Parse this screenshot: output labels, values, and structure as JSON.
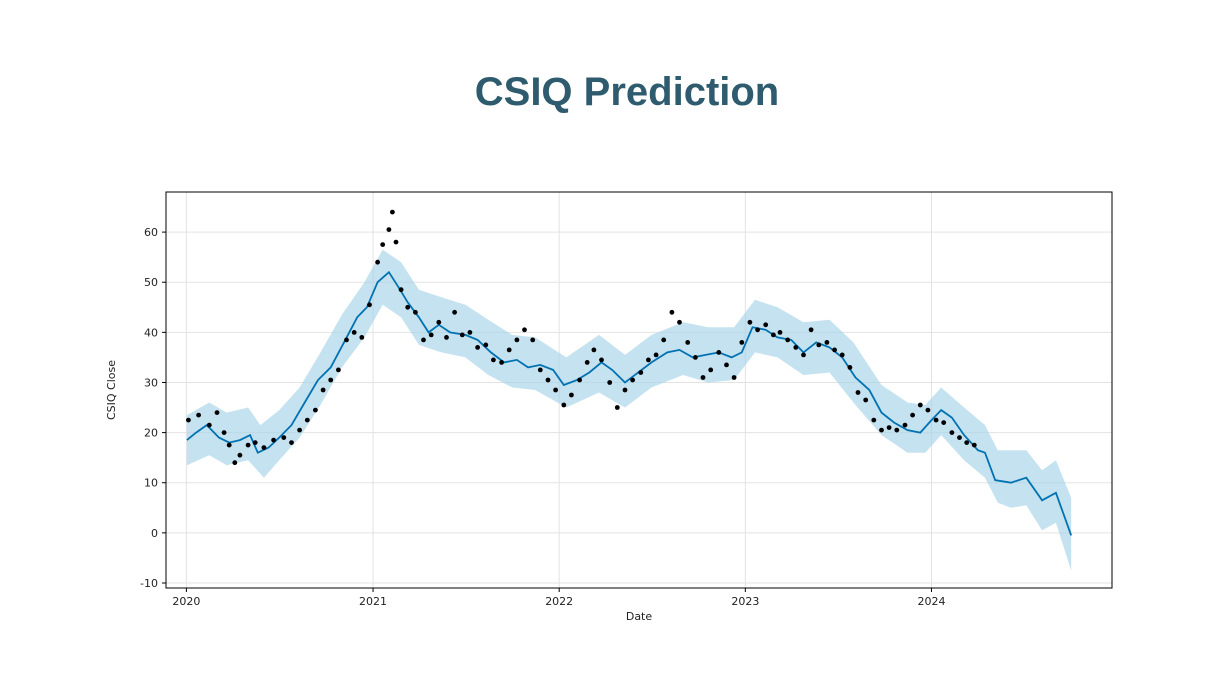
{
  "page": {
    "title": "CSIQ Prediction"
  },
  "colors": {
    "title": "#2e5b6e",
    "forecast": "#0072b2",
    "band": "#a6d2e8",
    "actual": "#000000"
  },
  "chart_data": {
    "type": "line",
    "title": "",
    "xlabel": "Date",
    "ylabel": "CSIQ Close",
    "x_ticks": [
      "2020",
      "2021",
      "2022",
      "2023",
      "2024"
    ],
    "y_ticks": [
      -10,
      0,
      10,
      20,
      30,
      40,
      50,
      60
    ],
    "xlim": [
      "2019-11-22",
      "2024-12-20"
    ],
    "ylim": [
      -11,
      68
    ],
    "grid": true,
    "series": [
      {
        "kind": "forecast",
        "points": [
          [
            "2020-01-02",
            18.5
          ],
          [
            "2020-01-20",
            20.0
          ],
          [
            "2020-02-10",
            21.5
          ],
          [
            "2020-03-05",
            19.0
          ],
          [
            "2020-03-25",
            18.0
          ],
          [
            "2020-04-15",
            18.5
          ],
          [
            "2020-05-05",
            19.5
          ],
          [
            "2020-05-20",
            16.0
          ],
          [
            "2020-06-10",
            17.0
          ],
          [
            "2020-07-01",
            19.0
          ],
          [
            "2020-07-25",
            21.5
          ],
          [
            "2020-08-20",
            26.0
          ],
          [
            "2020-09-15",
            30.5
          ],
          [
            "2020-10-10",
            33.0
          ],
          [
            "2020-11-05",
            38.0
          ],
          [
            "2020-12-01",
            43.0
          ],
          [
            "2020-12-20",
            45.0
          ],
          [
            "2021-01-10",
            50.0
          ],
          [
            "2021-02-01",
            52.0
          ],
          [
            "2021-02-20",
            49.0
          ],
          [
            "2021-03-10",
            46.0
          ],
          [
            "2021-04-01",
            43.0
          ],
          [
            "2021-04-20",
            40.0
          ],
          [
            "2021-05-10",
            41.5
          ],
          [
            "2021-06-01",
            40.0
          ],
          [
            "2021-07-01",
            39.5
          ],
          [
            "2021-07-25",
            38.5
          ],
          [
            "2021-08-20",
            36.0
          ],
          [
            "2021-09-15",
            34.0
          ],
          [
            "2021-10-10",
            34.5
          ],
          [
            "2021-11-01",
            33.0
          ],
          [
            "2021-11-25",
            33.5
          ],
          [
            "2021-12-20",
            32.5
          ],
          [
            "2022-01-10",
            29.5
          ],
          [
            "2022-02-05",
            30.5
          ],
          [
            "2022-03-01",
            32.0
          ],
          [
            "2022-03-25",
            34.0
          ],
          [
            "2022-04-15",
            32.5
          ],
          [
            "2022-05-10",
            30.0
          ],
          [
            "2022-06-05",
            32.0
          ],
          [
            "2022-07-01",
            34.0
          ],
          [
            "2022-08-01",
            36.0
          ],
          [
            "2022-08-25",
            36.5
          ],
          [
            "2022-09-20",
            35.0
          ],
          [
            "2022-10-15",
            35.5
          ],
          [
            "2022-11-10",
            36.0
          ],
          [
            "2022-12-05",
            35.0
          ],
          [
            "2022-12-25",
            36.0
          ],
          [
            "2023-01-15",
            41.0
          ],
          [
            "2023-02-10",
            40.5
          ],
          [
            "2023-03-05",
            39.0
          ],
          [
            "2023-04-01",
            38.5
          ],
          [
            "2023-04-25",
            36.0
          ],
          [
            "2023-05-20",
            38.0
          ],
          [
            "2023-06-15",
            37.0
          ],
          [
            "2023-07-10",
            35.0
          ],
          [
            "2023-08-05",
            31.0
          ],
          [
            "2023-09-01",
            28.5
          ],
          [
            "2023-09-25",
            24.0
          ],
          [
            "2023-10-20",
            22.0
          ],
          [
            "2023-11-15",
            20.5
          ],
          [
            "2023-12-10",
            20.0
          ],
          [
            "2024-01-01",
            22.5
          ],
          [
            "2024-01-20",
            24.5
          ],
          [
            "2024-02-10",
            23.0
          ],
          [
            "2024-03-05",
            19.5
          ],
          [
            "2024-04-01",
            16.5
          ],
          [
            "2024-04-15",
            16.0
          ],
          [
            "2024-05-05",
            10.5
          ],
          [
            "2024-06-05",
            10.0
          ],
          [
            "2024-07-05",
            11.0
          ],
          [
            "2024-08-05",
            6.5
          ],
          [
            "2024-09-01",
            8.0
          ],
          [
            "2024-10-01",
            -0.5
          ]
        ],
        "band_upper": [
          [
            "2020-01-02",
            23.5
          ],
          [
            "2020-02-15",
            26.0
          ],
          [
            "2020-03-20",
            24.0
          ],
          [
            "2020-05-01",
            25.0
          ],
          [
            "2020-05-25",
            21.5
          ],
          [
            "2020-07-01",
            24.5
          ],
          [
            "2020-08-10",
            29.0
          ],
          [
            "2020-09-20",
            36.0
          ],
          [
            "2020-11-01",
            43.5
          ],
          [
            "2020-12-15",
            50.0
          ],
          [
            "2021-01-20",
            56.5
          ],
          [
            "2021-02-25",
            54.0
          ],
          [
            "2021-04-01",
            48.5
          ],
          [
            "2021-05-15",
            47.0
          ],
          [
            "2021-07-01",
            45.5
          ],
          [
            "2021-08-15",
            42.5
          ],
          [
            "2021-10-01",
            39.5
          ],
          [
            "2021-11-15",
            39.0
          ],
          [
            "2022-01-15",
            35.0
          ],
          [
            "2022-03-20",
            39.5
          ],
          [
            "2022-05-10",
            35.5
          ],
          [
            "2022-07-01",
            39.5
          ],
          [
            "2022-09-01",
            42.0
          ],
          [
            "2022-10-20",
            41.0
          ],
          [
            "2022-12-10",
            41.0
          ],
          [
            "2023-01-20",
            46.5
          ],
          [
            "2023-03-05",
            45.0
          ],
          [
            "2023-04-25",
            42.0
          ],
          [
            "2023-06-15",
            42.5
          ],
          [
            "2023-08-01",
            38.0
          ],
          [
            "2023-09-25",
            29.5
          ],
          [
            "2023-11-15",
            26.0
          ],
          [
            "2023-12-20",
            25.5
          ],
          [
            "2024-01-20",
            29.0
          ],
          [
            "2024-03-05",
            25.0
          ],
          [
            "2024-04-15",
            21.5
          ],
          [
            "2024-05-10",
            16.5
          ],
          [
            "2024-07-05",
            16.5
          ],
          [
            "2024-08-05",
            12.5
          ],
          [
            "2024-09-01",
            14.5
          ],
          [
            "2024-10-01",
            7.0
          ]
        ],
        "band_lower": [
          [
            "2024-10-01",
            -7.5
          ],
          [
            "2024-09-01",
            2.0
          ],
          [
            "2024-08-05",
            0.5
          ],
          [
            "2024-07-05",
            5.5
          ],
          [
            "2024-06-05",
            5.0
          ],
          [
            "2024-05-10",
            6.0
          ],
          [
            "2024-04-15",
            11.0
          ],
          [
            "2024-03-05",
            14.5
          ],
          [
            "2024-01-20",
            19.5
          ],
          [
            "2023-12-20",
            16.0
          ],
          [
            "2023-11-15",
            16.0
          ],
          [
            "2023-09-25",
            19.5
          ],
          [
            "2023-08-01",
            26.0
          ],
          [
            "2023-06-15",
            32.0
          ],
          [
            "2023-04-25",
            31.5
          ],
          [
            "2023-03-05",
            35.0
          ],
          [
            "2023-01-20",
            36.0
          ],
          [
            "2022-12-10",
            30.5
          ],
          [
            "2022-10-20",
            30.0
          ],
          [
            "2022-09-01",
            31.5
          ],
          [
            "2022-07-01",
            29.0
          ],
          [
            "2022-05-10",
            25.0
          ],
          [
            "2022-03-20",
            28.0
          ],
          [
            "2022-01-15",
            25.0
          ],
          [
            "2021-11-15",
            28.5
          ],
          [
            "2021-10-01",
            29.0
          ],
          [
            "2021-08-15",
            31.5
          ],
          [
            "2021-07-01",
            35.0
          ],
          [
            "2021-05-15",
            36.0
          ],
          [
            "2021-04-01",
            37.5
          ],
          [
            "2021-02-25",
            43.0
          ],
          [
            "2021-01-20",
            45.5
          ],
          [
            "2020-12-15",
            39.0
          ],
          [
            "2020-11-01",
            33.0
          ],
          [
            "2020-09-20",
            25.5
          ],
          [
            "2020-08-10",
            19.0
          ],
          [
            "2020-07-01",
            14.5
          ],
          [
            "2020-06-01",
            11.0
          ],
          [
            "2020-05-01",
            14.5
          ],
          [
            "2020-03-20",
            13.5
          ],
          [
            "2020-02-15",
            15.5
          ],
          [
            "2020-01-02",
            13.5
          ]
        ]
      },
      {
        "kind": "actual",
        "points": [
          [
            "2020-01-05",
            22.5
          ],
          [
            "2020-01-25",
            23.5
          ],
          [
            "2020-02-15",
            21.5
          ],
          [
            "2020-03-01",
            24.0
          ],
          [
            "2020-03-15",
            20.0
          ],
          [
            "2020-03-25",
            17.5
          ],
          [
            "2020-04-05",
            14.0
          ],
          [
            "2020-04-15",
            15.5
          ],
          [
            "2020-05-01",
            17.5
          ],
          [
            "2020-05-15",
            18.0
          ],
          [
            "2020-06-01",
            17.0
          ],
          [
            "2020-06-20",
            18.5
          ],
          [
            "2020-07-10",
            19.0
          ],
          [
            "2020-07-25",
            18.0
          ],
          [
            "2020-08-10",
            20.5
          ],
          [
            "2020-08-25",
            22.5
          ],
          [
            "2020-09-10",
            24.5
          ],
          [
            "2020-09-25",
            28.5
          ],
          [
            "2020-10-10",
            30.5
          ],
          [
            "2020-10-25",
            32.5
          ],
          [
            "2020-11-10",
            38.5
          ],
          [
            "2020-11-25",
            40.0
          ],
          [
            "2020-12-10",
            39.0
          ],
          [
            "2020-12-25",
            45.5
          ],
          [
            "2021-01-10",
            54.0
          ],
          [
            "2021-01-20",
            57.5
          ],
          [
            "2021-02-01",
            60.5
          ],
          [
            "2021-02-08",
            64.0
          ],
          [
            "2021-02-15",
            58.0
          ],
          [
            "2021-02-25",
            48.5
          ],
          [
            "2021-03-10",
            45.0
          ],
          [
            "2021-03-25",
            44.0
          ],
          [
            "2021-04-10",
            38.5
          ],
          [
            "2021-04-25",
            39.5
          ],
          [
            "2021-05-10",
            42.0
          ],
          [
            "2021-05-25",
            39.0
          ],
          [
            "2021-06-10",
            44.0
          ],
          [
            "2021-06-25",
            39.5
          ],
          [
            "2021-07-10",
            40.0
          ],
          [
            "2021-07-25",
            37.0
          ],
          [
            "2021-08-10",
            37.5
          ],
          [
            "2021-08-25",
            34.5
          ],
          [
            "2021-09-10",
            34.0
          ],
          [
            "2021-09-25",
            36.5
          ],
          [
            "2021-10-10",
            38.5
          ],
          [
            "2021-10-25",
            40.5
          ],
          [
            "2021-11-10",
            38.5
          ],
          [
            "2021-11-25",
            32.5
          ],
          [
            "2021-12-10",
            30.5
          ],
          [
            "2021-12-25",
            28.5
          ],
          [
            "2022-01-10",
            25.5
          ],
          [
            "2022-01-25",
            27.5
          ],
          [
            "2022-02-10",
            30.5
          ],
          [
            "2022-02-25",
            34.0
          ],
          [
            "2022-03-10",
            36.5
          ],
          [
            "2022-03-25",
            34.5
          ],
          [
            "2022-04-10",
            30.0
          ],
          [
            "2022-04-25",
            25.0
          ],
          [
            "2022-05-10",
            28.5
          ],
          [
            "2022-05-25",
            30.5
          ],
          [
            "2022-06-10",
            32.0
          ],
          [
            "2022-06-25",
            34.5
          ],
          [
            "2022-07-10",
            35.5
          ],
          [
            "2022-07-25",
            38.5
          ],
          [
            "2022-08-10",
            44.0
          ],
          [
            "2022-08-25",
            42.0
          ],
          [
            "2022-09-10",
            38.0
          ],
          [
            "2022-09-25",
            35.0
          ],
          [
            "2022-10-10",
            31.0
          ],
          [
            "2022-10-25",
            32.5
          ],
          [
            "2022-11-10",
            36.0
          ],
          [
            "2022-11-25",
            33.5
          ],
          [
            "2022-12-10",
            31.0
          ],
          [
            "2022-12-25",
            38.0
          ],
          [
            "2023-01-10",
            42.0
          ],
          [
            "2023-01-25",
            40.5
          ],
          [
            "2023-02-10",
            41.5
          ],
          [
            "2023-02-25",
            39.5
          ],
          [
            "2023-03-10",
            40.0
          ],
          [
            "2023-03-25",
            38.5
          ],
          [
            "2023-04-10",
            37.0
          ],
          [
            "2023-04-25",
            35.5
          ],
          [
            "2023-05-10",
            40.5
          ],
          [
            "2023-05-25",
            37.5
          ],
          [
            "2023-06-10",
            38.0
          ],
          [
            "2023-06-25",
            36.5
          ],
          [
            "2023-07-10",
            35.5
          ],
          [
            "2023-07-25",
            33.0
          ],
          [
            "2023-08-10",
            28.0
          ],
          [
            "2023-08-25",
            26.5
          ],
          [
            "2023-09-10",
            22.5
          ],
          [
            "2023-09-25",
            20.5
          ],
          [
            "2023-10-10",
            21.0
          ],
          [
            "2023-10-25",
            20.5
          ],
          [
            "2023-11-10",
            21.5
          ],
          [
            "2023-11-25",
            23.5
          ],
          [
            "2023-12-10",
            25.5
          ],
          [
            "2023-12-25",
            24.5
          ],
          [
            "2024-01-10",
            22.5
          ],
          [
            "2024-01-25",
            22.0
          ],
          [
            "2024-02-10",
            20.0
          ],
          [
            "2024-02-25",
            19.0
          ],
          [
            "2024-03-10",
            18.0
          ],
          [
            "2024-03-25",
            17.5
          ]
        ]
      }
    ]
  }
}
